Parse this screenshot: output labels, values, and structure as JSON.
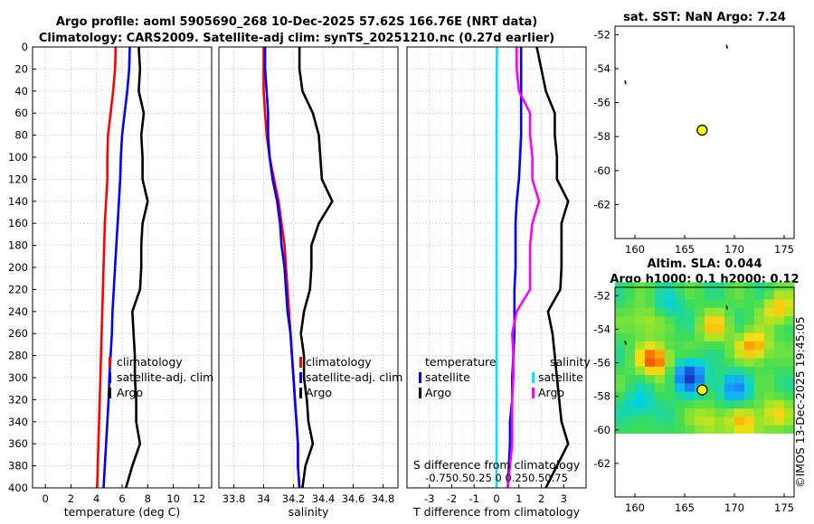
{
  "header": {
    "line1": "Argo profile: aoml 5905690_268 10-Dec-2025 57.62S 166.76E (NRT data)",
    "line2": "Climatology: CARS2009. Satellite-adj clim: synTS_20251210.nc (0.27d earlier)"
  },
  "watermark": "©IMOS 13-Dec-2025 19:45:05",
  "colors": {
    "climatology": "#ff0000",
    "satellite": "#0000ff",
    "argo": "#000000",
    "cyan": "#00e5ff",
    "magenta": "#ff00ff",
    "grid": "#c8c8c8",
    "marker": "#ffff00"
  },
  "depth_ticks": [
    "0",
    "20",
    "40",
    "60",
    "80",
    "100",
    "120",
    "140",
    "160",
    "180",
    "200",
    "220",
    "240",
    "260",
    "280",
    "300",
    "320",
    "340",
    "360",
    "380",
    "400"
  ],
  "chart_data": [
    {
      "type": "line",
      "name": "temperature-profile",
      "xlabel": "temperature (deg C)",
      "xlim": [
        -1,
        13
      ],
      "ylim": [
        400,
        0
      ],
      "xticks": [
        "0",
        "2",
        "4",
        "6",
        "8",
        "10",
        "12"
      ],
      "grid": true,
      "legend": [
        "climatology",
        "satellite-adj. clim",
        "Argo"
      ],
      "series": [
        {
          "name": "climatology",
          "color": "#ff0000",
          "depth": [
            0,
            20,
            40,
            60,
            80,
            100,
            120,
            140,
            160,
            180,
            200,
            220,
            240,
            260,
            280,
            300,
            320,
            340,
            360,
            380,
            400
          ],
          "values": [
            5.5,
            5.45,
            5.3,
            5.1,
            4.9,
            4.85,
            4.85,
            4.75,
            4.65,
            4.6,
            4.55,
            4.5,
            4.45,
            4.4,
            4.35,
            4.3,
            4.25,
            4.2,
            4.15,
            4.1,
            4.05
          ]
        },
        {
          "name": "satellite-adj. clim",
          "color": "#0000ff",
          "depth": [
            0,
            20,
            40,
            60,
            80,
            100,
            120,
            140,
            160,
            180,
            200,
            220,
            240,
            260,
            280,
            300,
            320,
            340,
            360,
            380,
            400
          ],
          "values": [
            6.6,
            6.55,
            6.4,
            6.2,
            6.0,
            5.9,
            5.85,
            5.75,
            5.65,
            5.55,
            5.45,
            5.35,
            5.25,
            5.2,
            5.1,
            5.0,
            4.95,
            4.85,
            4.75,
            4.65,
            4.55
          ]
        },
        {
          "name": "Argo",
          "color": "#000000",
          "depth": [
            0,
            20,
            40,
            60,
            80,
            100,
            120,
            140,
            160,
            180,
            200,
            220,
            240,
            260,
            280,
            300,
            320,
            340,
            360,
            380,
            400
          ],
          "values": [
            7.3,
            7.4,
            7.3,
            7.7,
            7.5,
            7.6,
            7.6,
            8.0,
            7.6,
            7.5,
            7.5,
            7.4,
            6.8,
            6.9,
            7.0,
            7.0,
            7.1,
            7.1,
            7.4,
            6.8,
            6.3
          ]
        }
      ]
    },
    {
      "type": "line",
      "name": "salinity-profile",
      "xlabel": "salinity",
      "xlim": [
        33.7,
        34.9
      ],
      "ylim": [
        400,
        0
      ],
      "xticks": [
        "33.8",
        "34",
        "34.2",
        "34.4",
        "34.6",
        "34.8"
      ],
      "grid": true,
      "legend": [
        "climatology",
        "satellite-adj. clim",
        "Argo"
      ],
      "series": [
        {
          "name": "climatology",
          "color": "#ff0000",
          "depth": [
            0,
            20,
            40,
            60,
            80,
            100,
            120,
            140,
            160,
            180,
            200,
            220,
            240,
            260,
            280,
            300,
            320,
            340,
            360,
            380,
            400
          ],
          "values": [
            34.0,
            34.0,
            34.0,
            34.01,
            34.02,
            34.04,
            34.07,
            34.1,
            34.12,
            34.14,
            34.15,
            34.16,
            34.17,
            34.18,
            34.19,
            34.2,
            34.21,
            34.22,
            34.23,
            34.23,
            34.24
          ]
        },
        {
          "name": "satellite-adj. clim",
          "color": "#0000ff",
          "depth": [
            0,
            20,
            40,
            60,
            80,
            100,
            120,
            140,
            160,
            180,
            200,
            220,
            240,
            260,
            280,
            300,
            320,
            340,
            360,
            380,
            400
          ],
          "values": [
            34.01,
            34.01,
            34.02,
            34.03,
            34.03,
            34.04,
            34.06,
            34.09,
            34.11,
            34.12,
            34.14,
            34.15,
            34.16,
            34.18,
            34.19,
            34.2,
            34.21,
            34.22,
            34.23,
            34.23,
            34.24
          ]
        },
        {
          "name": "Argo",
          "color": "#000000",
          "depth": [
            0,
            20,
            40,
            60,
            80,
            100,
            120,
            140,
            160,
            180,
            200,
            220,
            240,
            260,
            280,
            300,
            320,
            340,
            360,
            380,
            400
          ],
          "values": [
            34.24,
            34.24,
            34.26,
            34.33,
            34.37,
            34.38,
            34.39,
            34.46,
            34.37,
            34.32,
            34.32,
            34.31,
            34.27,
            34.25,
            34.27,
            34.27,
            34.29,
            34.3,
            34.33,
            34.28,
            34.26
          ]
        }
      ]
    },
    {
      "type": "line",
      "name": "difference-profile",
      "xlabel": "T difference from climatology",
      "xlabel_top": "S difference from climatology",
      "xlim": [
        -4,
        4
      ],
      "ylim": [
        400,
        0
      ],
      "xticks": [
        "-3",
        "-2",
        "-1",
        "0",
        "1",
        "2",
        "3"
      ],
      "xticks_top": "-0.750.50.25 0 0.250.50.75",
      "grid": true,
      "legend_headers": [
        "temperature",
        "salinity"
      ],
      "legend": [
        "satellite",
        "Argo",
        "satellite",
        "Argo"
      ],
      "series": [
        {
          "name": "temperature satellite",
          "color": "#0000ff",
          "depth": [
            0,
            20,
            40,
            60,
            80,
            100,
            120,
            140,
            160,
            180,
            200,
            220,
            240,
            260,
            280,
            300,
            320,
            340,
            360,
            380,
            400
          ],
          "values": [
            1.1,
            1.1,
            1.1,
            1.1,
            1.1,
            1.05,
            1.0,
            0.9,
            0.85,
            0.85,
            0.85,
            0.8,
            0.8,
            0.8,
            0.75,
            0.7,
            0.7,
            0.6,
            0.6,
            0.55,
            0.5
          ]
        },
        {
          "name": "temperature Argo",
          "color": "#000000",
          "depth": [
            0,
            20,
            40,
            60,
            80,
            100,
            120,
            140,
            160,
            180,
            200,
            220,
            240,
            260,
            280,
            300,
            320,
            340,
            360,
            380,
            400
          ],
          "values": [
            1.8,
            2.0,
            2.2,
            2.6,
            2.6,
            2.7,
            2.7,
            3.2,
            2.9,
            2.9,
            2.9,
            2.85,
            2.3,
            2.5,
            2.6,
            2.7,
            2.8,
            2.9,
            3.2,
            2.7,
            2.2
          ]
        },
        {
          "name": "salinity satellite",
          "color": "#00e5ff",
          "depth": [
            0,
            20,
            40,
            60,
            80,
            100,
            120,
            140,
            160,
            180,
            200,
            220,
            240,
            260,
            280,
            300,
            320,
            340,
            360,
            380,
            400
          ],
          "values": [
            0.02,
            0.01,
            0.01,
            0.01,
            0.0,
            0.0,
            0.0,
            0.0,
            0.0,
            0.0,
            0.0,
            0.0,
            0.0,
            0.0,
            0.0,
            0.0,
            0.0,
            0.0,
            0.0,
            0.0,
            0.0
          ]
        },
        {
          "name": "salinity Argo",
          "color": "#ff00ff",
          "depth": [
            0,
            20,
            40,
            60,
            80,
            100,
            120,
            140,
            160,
            180,
            200,
            220,
            240,
            260,
            280,
            300,
            320,
            340,
            360,
            380,
            400
          ],
          "values": [
            0.9,
            0.9,
            1.0,
            1.5,
            1.5,
            1.6,
            1.6,
            1.9,
            1.6,
            1.5,
            1.5,
            1.5,
            0.9,
            0.7,
            0.75,
            0.75,
            0.7,
            0.7,
            0.7,
            0.6,
            0.5
          ]
        }
      ]
    },
    {
      "type": "scatter",
      "name": "sst-map",
      "title": "sat. SST: NaN Argo: 7.24",
      "xlim": [
        158,
        176
      ],
      "ylim": [
        -64,
        -51.5
      ],
      "xticks": [
        "160",
        "165",
        "170",
        "175"
      ],
      "yticks": [
        "-52",
        "-54",
        "-56",
        "-58",
        "-60",
        "-62"
      ],
      "argo_position": {
        "lon": 166.76,
        "lat": -57.62
      },
      "coast_marks": [
        {
          "lon": 159.0,
          "lat": -54.7
        },
        {
          "lon": 169.2,
          "lat": -52.6
        }
      ]
    },
    {
      "type": "heatmap",
      "name": "sla-map",
      "title_line1": "Altim. SLA: 0.044",
      "title_line2": "Argo h1000: 0.1 h2000: 0.12",
      "xlim": [
        158,
        176
      ],
      "ylim": [
        -64,
        -51.5
      ],
      "data_lat_range": [
        -60.2,
        -51.5
      ],
      "xticks": [
        "160",
        "165",
        "170",
        "175"
      ],
      "yticks": [
        "-52",
        "-54",
        "-56",
        "-58",
        "-60",
        "-62"
      ],
      "argo_position": {
        "lon": 166.76,
        "lat": -57.62
      },
      "anomalies": [
        {
          "lon": 162.0,
          "lat": -55.8,
          "v": 0.9
        },
        {
          "lon": 165.5,
          "lat": -56.8,
          "v": -1.0
        },
        {
          "lon": 170.0,
          "lat": -57.5,
          "v": -0.6
        },
        {
          "lon": 172.0,
          "lat": -55.0,
          "v": 0.7
        },
        {
          "lon": 160.5,
          "lat": -58.5,
          "v": -0.35
        },
        {
          "lon": 168.0,
          "lat": -53.8,
          "v": 0.5
        },
        {
          "lon": 174.5,
          "lat": -52.8,
          "v": 0.55
        },
        {
          "lon": 174.0,
          "lat": -59.0,
          "v": 0.45
        },
        {
          "lon": 163.5,
          "lat": -52.6,
          "v": -0.25
        },
        {
          "lon": 167.5,
          "lat": -59.4,
          "v": 0.4
        },
        {
          "lon": 171.0,
          "lat": -59.6,
          "v": 0.5
        },
        {
          "lon": 161.0,
          "lat": -53.5,
          "v": 0.35
        }
      ]
    }
  ]
}
